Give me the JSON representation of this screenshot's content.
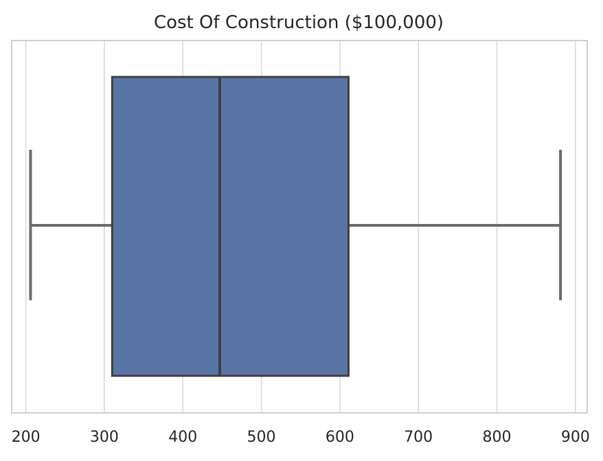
{
  "chart_data": {
    "type": "box",
    "title": "Cost Of Construction ($100,000)",
    "xlabel": "",
    "ylabel": "",
    "xlim": [
      182,
      915
    ],
    "x_ticks": [
      200,
      300,
      400,
      500,
      600,
      700,
      800,
      900
    ],
    "grid": "vertical",
    "box": {
      "whisker_low": 206,
      "q1": 310,
      "median": 447,
      "q3": 611,
      "whisker_high": 881
    },
    "colors": {
      "box_fill": "#5875a5",
      "box_edge": "#3f3f3f",
      "whisker": "#6b6b6b",
      "grid": "#d6d6d6",
      "frame": "#cfcfcf",
      "text": "#262626"
    }
  }
}
